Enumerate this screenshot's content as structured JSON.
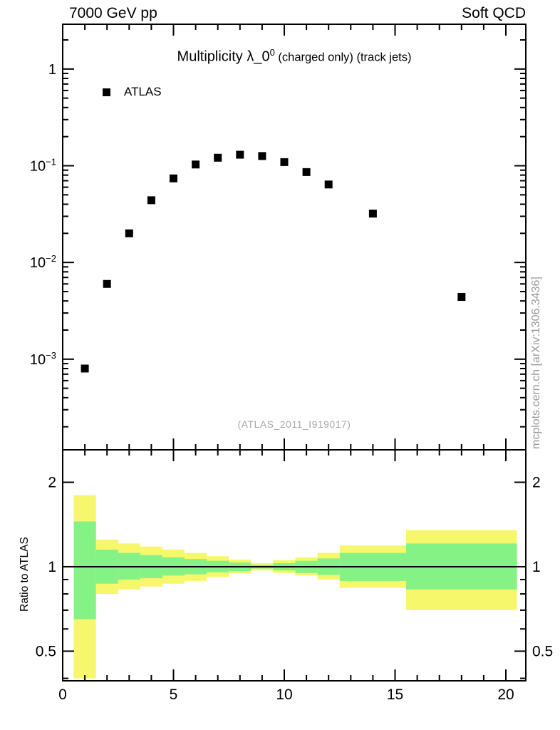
{
  "header": {
    "left": "7000 GeV pp",
    "right": "Soft QCD"
  },
  "watermarks": {
    "analysis": "(ATLAS_2011_I919017)",
    "side": "mcplots.cern.ch [arXiv:1306.3436]"
  },
  "chart_data": {
    "type": "scatter",
    "title": {
      "main": "Multiplicity λ_0",
      "sup": "0",
      "suffix": " (charged only) (track jets)"
    },
    "legend": [
      {
        "label": "ATLAS",
        "marker": "filled-square"
      }
    ],
    "x": [
      1,
      2,
      3,
      4,
      5,
      6,
      7,
      8,
      9,
      10,
      11,
      12,
      14,
      18
    ],
    "y": [
      0.0008,
      0.006,
      0.02,
      0.044,
      0.074,
      0.103,
      0.121,
      0.13,
      0.126,
      0.109,
      0.086,
      0.064,
      0.032,
      0.0044
    ],
    "xlim": [
      0,
      20.9
    ],
    "ylim": [
      0.0001155,
      2.905
    ],
    "ylog": true,
    "grid": false,
    "legend_position": "top-left",
    "x_major_ticks": [
      0,
      5,
      10,
      15,
      20
    ],
    "y_decades": [
      0,
      -1,
      -2,
      -3
    ],
    "ratio": {
      "ylabel": "Ratio to ATLAS",
      "ylog": true,
      "ylim": [
        0.392,
        2.61
      ],
      "yticks": [
        0.5,
        1,
        2
      ],
      "line_y": 1,
      "bands": [
        {
          "x0": 0.5,
          "x1": 1.5,
          "outer": [
            0.4,
            1.8
          ],
          "inner": [
            0.65,
            1.45
          ]
        },
        {
          "x0": 1.5,
          "x1": 2.5,
          "outer": [
            0.8,
            1.25
          ],
          "inner": [
            0.87,
            1.15
          ]
        },
        {
          "x0": 2.5,
          "x1": 3.5,
          "outer": [
            0.83,
            1.21
          ],
          "inner": [
            0.9,
            1.12
          ]
        },
        {
          "x0": 3.5,
          "x1": 4.5,
          "outer": [
            0.85,
            1.18
          ],
          "inner": [
            0.91,
            1.1
          ]
        },
        {
          "x0": 4.5,
          "x1": 5.5,
          "outer": [
            0.87,
            1.15
          ],
          "inner": [
            0.93,
            1.08
          ]
        },
        {
          "x0": 5.5,
          "x1": 6.5,
          "outer": [
            0.89,
            1.12
          ],
          "inner": [
            0.94,
            1.065
          ]
        },
        {
          "x0": 6.5,
          "x1": 7.5,
          "outer": [
            0.92,
            1.09
          ],
          "inner": [
            0.955,
            1.05
          ]
        },
        {
          "x0": 7.5,
          "x1": 8.5,
          "outer": [
            0.945,
            1.06
          ],
          "inner": [
            0.965,
            1.035
          ]
        },
        {
          "x0": 8.5,
          "x1": 9.5,
          "outer": [
            0.97,
            1.03
          ],
          "inner": [
            0.985,
            1.015
          ]
        },
        {
          "x0": 9.5,
          "x1": 10.5,
          "outer": [
            0.95,
            1.055
          ],
          "inner": [
            0.97,
            1.03
          ]
        },
        {
          "x0": 10.5,
          "x1": 11.5,
          "outer": [
            0.93,
            1.08
          ],
          "inner": [
            0.95,
            1.05
          ]
        },
        {
          "x0": 11.5,
          "x1": 12.5,
          "outer": [
            0.9,
            1.12
          ],
          "inner": [
            0.935,
            1.07
          ]
        },
        {
          "x0": 12.5,
          "x1": 15.5,
          "outer": [
            0.84,
            1.19
          ],
          "inner": [
            0.89,
            1.12
          ]
        },
        {
          "x0": 15.5,
          "x1": 20.5,
          "outer": [
            0.7,
            1.35
          ],
          "inner": [
            0.83,
            1.21
          ]
        }
      ]
    },
    "colors": {
      "marker": "#000000",
      "band_outer": "#f7f76b",
      "band_inner": "#85f285"
    }
  }
}
